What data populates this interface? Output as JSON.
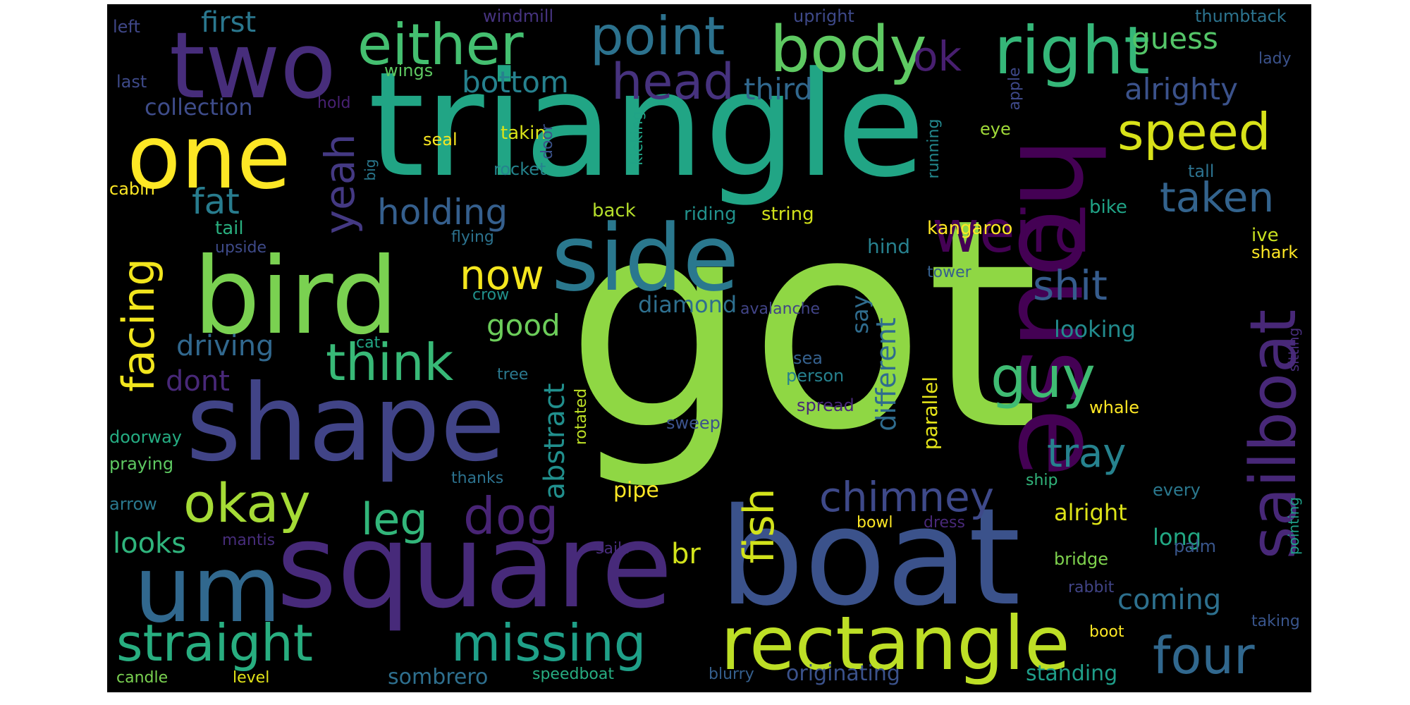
{
  "word_cloud": {
    "background_color": "#000000",
    "words": [
      {
        "text": "got",
        "color": "#8fd744"
      },
      {
        "text": "triangle",
        "color": "#21a585"
      },
      {
        "text": "house",
        "color": "#440154"
      },
      {
        "text": "boat",
        "color": "#3b528b"
      },
      {
        "text": "square",
        "color": "#472a7a"
      },
      {
        "text": "shape",
        "color": "#414487"
      },
      {
        "text": "side",
        "color": "#2a788e"
      },
      {
        "text": "bird",
        "color": "#7ad151"
      },
      {
        "text": "two",
        "color": "#472d7b"
      },
      {
        "text": "one",
        "color": "#fde725"
      },
      {
        "text": "um",
        "color": "#31688e"
      },
      {
        "text": "rectangle",
        "color": "#bddf26"
      },
      {
        "text": "sailboat",
        "color": "#482878"
      },
      {
        "text": "right",
        "color": "#35b779"
      },
      {
        "text": "body",
        "color": "#5ec962"
      },
      {
        "text": "either",
        "color": "#44bf70"
      },
      {
        "text": "point",
        "color": "#2c728e"
      },
      {
        "text": "head",
        "color": "#46327e"
      },
      {
        "text": "weird",
        "color": "#440154"
      },
      {
        "text": "speed",
        "color": "#d8e219"
      },
      {
        "text": "guy",
        "color": "#3fbc73"
      },
      {
        "text": "straight",
        "color": "#28ae80"
      },
      {
        "text": "missing",
        "color": "#1fa088"
      },
      {
        "text": "four",
        "color": "#31688e"
      },
      {
        "text": "okay",
        "color": "#a5db36"
      },
      {
        "text": "think",
        "color": "#38b977"
      },
      {
        "text": "facing",
        "color": "#f1e51d"
      },
      {
        "text": "fish",
        "color": "#d2e21b"
      },
      {
        "text": "dog",
        "color": "#482475"
      },
      {
        "text": "chimney",
        "color": "#3e4989"
      },
      {
        "text": "leg",
        "color": "#32b67a"
      },
      {
        "text": "now",
        "color": "#f4e61e"
      },
      {
        "text": "yeah",
        "color": "#443983"
      },
      {
        "text": "shit",
        "color": "#365c8d"
      },
      {
        "text": "taken",
        "color": "#33638d"
      },
      {
        "text": "tray",
        "color": "#26828e"
      },
      {
        "text": "fat",
        "color": "#287c8e"
      },
      {
        "text": "holding",
        "color": "#355f8d"
      },
      {
        "text": "ok",
        "color": "#481f70"
      },
      {
        "text": "guess",
        "color": "#54c568"
      },
      {
        "text": "alrighty",
        "color": "#3b528b"
      },
      {
        "text": "bottom",
        "color": "#26818e"
      },
      {
        "text": "third",
        "color": "#31688e"
      },
      {
        "text": "first",
        "color": "#2a778e"
      },
      {
        "text": "collection",
        "color": "#3e4c8a"
      },
      {
        "text": "good",
        "color": "#6ccd5a"
      },
      {
        "text": "driving",
        "color": "#31688e"
      },
      {
        "text": "dont",
        "color": "#482878"
      },
      {
        "text": "looks",
        "color": "#2fb47c"
      },
      {
        "text": "abstract",
        "color": "#218f8d"
      },
      {
        "text": "different",
        "color": "#2f6c8e"
      },
      {
        "text": "say",
        "color": "#2f6c8e"
      },
      {
        "text": "diamond",
        "color": "#2e6f8e"
      },
      {
        "text": "coming",
        "color": "#2d708e"
      },
      {
        "text": "br",
        "color": "#d2e21b"
      },
      {
        "text": "parallel",
        "color": "#e5e419"
      },
      {
        "text": "looking",
        "color": "#228b8d"
      },
      {
        "text": "alright",
        "color": "#dde318"
      },
      {
        "text": "long",
        "color": "#22a884"
      },
      {
        "text": "pipe",
        "color": "#fde725"
      },
      {
        "text": "sombrero",
        "color": "#2e6f8e"
      },
      {
        "text": "standing",
        "color": "#1f9e89"
      },
      {
        "text": "originating",
        "color": "#3b528b"
      },
      {
        "text": "hind",
        "color": "#27808e"
      },
      {
        "text": "ive",
        "color": "#c8e020"
      },
      {
        "text": "rotated",
        "color": "#bddf26"
      },
      {
        "text": "riding",
        "color": "#21918c"
      },
      {
        "text": "string",
        "color": "#d2e21b"
      },
      {
        "text": "back",
        "color": "#b5de2b"
      },
      {
        "text": "kangaroo",
        "color": "#fde725"
      },
      {
        "text": "bike",
        "color": "#20a386"
      },
      {
        "text": "shark",
        "color": "#fde725"
      },
      {
        "text": "tall",
        "color": "#2c728e"
      },
      {
        "text": "eye",
        "color": "#a0da39"
      },
      {
        "text": "running",
        "color": "#23888e"
      },
      {
        "text": "kicking",
        "color": "#20a386"
      },
      {
        "text": "takin",
        "color": "#dae319"
      },
      {
        "text": "seal",
        "color": "#f8e621"
      },
      {
        "text": "door",
        "color": "#3b528b"
      },
      {
        "text": "rocket",
        "color": "#25848e"
      },
      {
        "text": "wings",
        "color": "#5ec962"
      },
      {
        "text": "hold",
        "color": "#482173"
      },
      {
        "text": "last",
        "color": "#3e4a89"
      },
      {
        "text": "left",
        "color": "#3f4788"
      },
      {
        "text": "windmill",
        "color": "#46337f"
      },
      {
        "text": "upright",
        "color": "#3e4989"
      },
      {
        "text": "thumbtack",
        "color": "#2c738e"
      },
      {
        "text": "lady",
        "color": "#3b528b"
      },
      {
        "text": "apple",
        "color": "#3e4989"
      },
      {
        "text": "big",
        "color": "#2a788e"
      },
      {
        "text": "cabin",
        "color": "#fde725"
      },
      {
        "text": "tail",
        "color": "#29af7f"
      },
      {
        "text": "upside",
        "color": "#3e4a89"
      },
      {
        "text": "flying",
        "color": "#2c728e"
      },
      {
        "text": "crow",
        "color": "#21918c"
      },
      {
        "text": "cat",
        "color": "#22a785"
      },
      {
        "text": "tree",
        "color": "#2a788e"
      },
      {
        "text": "sea",
        "color": "#35608d"
      },
      {
        "text": "person",
        "color": "#26818e"
      },
      {
        "text": "spread",
        "color": "#482878"
      },
      {
        "text": "sweep",
        "color": "#3b528b"
      },
      {
        "text": "whale",
        "color": "#fde725"
      },
      {
        "text": "tower",
        "color": "#355f8d"
      },
      {
        "text": "avalanche",
        "color": "#414487"
      },
      {
        "text": "sitting",
        "color": "#472d7b"
      },
      {
        "text": "pointing",
        "color": "#1fa187"
      },
      {
        "text": "doorway",
        "color": "#25ac82"
      },
      {
        "text": "praying",
        "color": "#5ec962"
      },
      {
        "text": "arrow",
        "color": "#2a788e"
      },
      {
        "text": "thanks",
        "color": "#2c728e"
      },
      {
        "text": "ship",
        "color": "#31b57b"
      },
      {
        "text": "every",
        "color": "#2a788e"
      },
      {
        "text": "bowl",
        "color": "#fde725"
      },
      {
        "text": "dress",
        "color": "#482878"
      },
      {
        "text": "mantis",
        "color": "#472d7b"
      },
      {
        "text": "sails",
        "color": "#472c7a"
      },
      {
        "text": "bridge",
        "color": "#7fd34e"
      },
      {
        "text": "palm",
        "color": "#39568c"
      },
      {
        "text": "rabbit",
        "color": "#414487"
      },
      {
        "text": "taking",
        "color": "#39558c"
      },
      {
        "text": "boot",
        "color": "#fde725"
      },
      {
        "text": "candle",
        "color": "#7ad151"
      },
      {
        "text": "level",
        "color": "#e2e418"
      },
      {
        "text": "speedboat",
        "color": "#27ad81"
      },
      {
        "text": "blurry",
        "color": "#355f8d"
      }
    ]
  }
}
